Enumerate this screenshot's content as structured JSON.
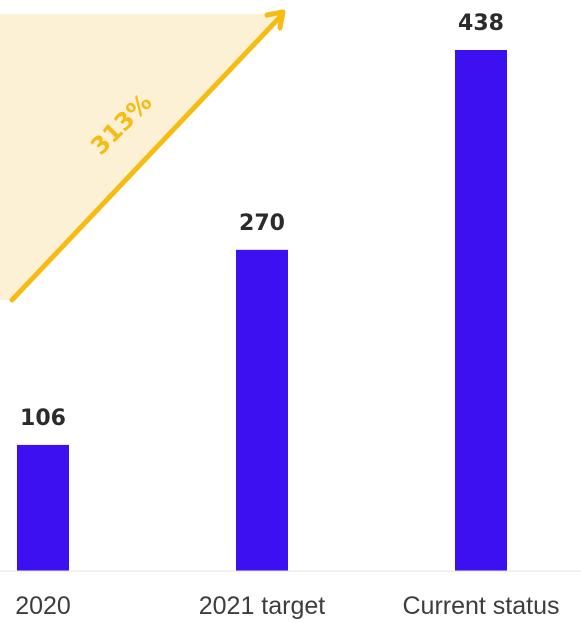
{
  "chart_data": {
    "type": "bar",
    "categories": [
      "2020",
      "2021 target",
      "Current status"
    ],
    "values": [
      106,
      270,
      438
    ],
    "value_labels": [
      "106",
      "270",
      "438"
    ],
    "ylim": [
      0,
      438
    ],
    "grid": false,
    "legend": "none",
    "bar_color": "#3d10f2",
    "annotation": {
      "text": "313%",
      "color": "#f6bc14",
      "fill_color": "#fcf1d4"
    }
  }
}
